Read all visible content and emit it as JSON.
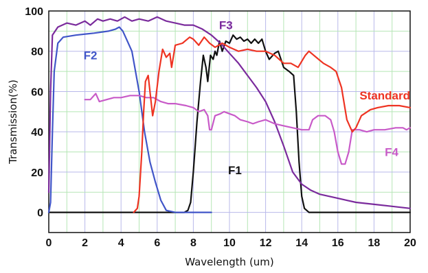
{
  "chart_data": {
    "type": "line",
    "xlabel": "Wavelength (um)",
    "ylabel": "Transmission(%)",
    "xlim": [
      0,
      20
    ],
    "ylim": [
      -10,
      100
    ],
    "xticks": [
      "0",
      "2",
      "4",
      "6",
      "8",
      "10",
      "12",
      "14",
      "16",
      "18",
      "20"
    ],
    "yticks": [
      "0",
      "20",
      "40",
      "60",
      "80",
      "100"
    ],
    "grid": true,
    "legend": "inline labels next to curves",
    "series": [
      {
        "name": "F1",
        "color": "#111111",
        "points": [
          [
            0,
            0
          ],
          [
            7.5,
            0
          ],
          [
            7.7,
            1
          ],
          [
            7.85,
            5
          ],
          [
            8.0,
            20
          ],
          [
            8.2,
            45
          ],
          [
            8.4,
            65
          ],
          [
            8.55,
            78
          ],
          [
            8.7,
            72
          ],
          [
            8.8,
            65
          ],
          [
            8.95,
            78
          ],
          [
            9.1,
            76
          ],
          [
            9.2,
            80
          ],
          [
            9.3,
            78
          ],
          [
            9.45,
            85
          ],
          [
            9.6,
            80
          ],
          [
            9.8,
            85
          ],
          [
            10.0,
            84
          ],
          [
            10.2,
            88
          ],
          [
            10.4,
            86
          ],
          [
            10.6,
            87
          ],
          [
            10.8,
            85
          ],
          [
            11.0,
            86
          ],
          [
            11.2,
            84
          ],
          [
            11.4,
            86
          ],
          [
            11.6,
            84
          ],
          [
            11.8,
            86
          ],
          [
            12.0,
            80
          ],
          [
            12.2,
            76
          ],
          [
            12.5,
            79
          ],
          [
            12.7,
            80
          ],
          [
            13.0,
            72
          ],
          [
            13.3,
            70
          ],
          [
            13.55,
            68
          ],
          [
            13.7,
            50
          ],
          [
            13.85,
            25
          ],
          [
            14.0,
            8
          ],
          [
            14.15,
            2
          ],
          [
            14.4,
            0
          ],
          [
            20,
            0
          ]
        ]
      },
      {
        "name": "F2",
        "color": "#4055c8",
        "points": [
          [
            0,
            0
          ],
          [
            0.1,
            5
          ],
          [
            0.2,
            40
          ],
          [
            0.3,
            70
          ],
          [
            0.5,
            84
          ],
          [
            0.8,
            87
          ],
          [
            1.5,
            88
          ],
          [
            2.5,
            89
          ],
          [
            3.3,
            90
          ],
          [
            3.7,
            91
          ],
          [
            3.9,
            92
          ],
          [
            4.1,
            90
          ],
          [
            4.3,
            86
          ],
          [
            4.6,
            80
          ],
          [
            5.0,
            60
          ],
          [
            5.3,
            40
          ],
          [
            5.6,
            25
          ],
          [
            5.9,
            15
          ],
          [
            6.2,
            6
          ],
          [
            6.5,
            1
          ],
          [
            7.0,
            0
          ],
          [
            9.0,
            0
          ]
        ]
      },
      {
        "name": "F3",
        "color": "#7a2a9c",
        "points": [
          [
            0,
            10
          ],
          [
            0.1,
            60
          ],
          [
            0.2,
            88
          ],
          [
            0.5,
            92
          ],
          [
            1.0,
            94
          ],
          [
            1.5,
            93
          ],
          [
            2.0,
            95
          ],
          [
            2.3,
            93
          ],
          [
            2.7,
            96
          ],
          [
            3.0,
            95
          ],
          [
            3.4,
            96
          ],
          [
            3.8,
            95
          ],
          [
            4.2,
            97
          ],
          [
            4.6,
            95
          ],
          [
            5.0,
            96
          ],
          [
            5.5,
            95
          ],
          [
            6.0,
            97
          ],
          [
            6.5,
            95
          ],
          [
            7.0,
            94
          ],
          [
            7.5,
            93
          ],
          [
            8.0,
            93
          ],
          [
            8.5,
            91
          ],
          [
            9.0,
            88
          ],
          [
            9.5,
            84
          ],
          [
            10.0,
            79
          ],
          [
            10.5,
            74
          ],
          [
            11.0,
            68
          ],
          [
            11.5,
            62
          ],
          [
            12.0,
            55
          ],
          [
            12.5,
            45
          ],
          [
            13.0,
            33
          ],
          [
            13.5,
            20
          ],
          [
            14.0,
            14
          ],
          [
            14.5,
            11
          ],
          [
            15.0,
            9
          ],
          [
            16.0,
            7
          ],
          [
            17.0,
            5
          ],
          [
            18.0,
            4
          ],
          [
            19.0,
            3
          ],
          [
            20.0,
            2
          ]
        ]
      },
      {
        "name": "F4",
        "color": "#c85ac8",
        "points": [
          [
            2.0,
            56
          ],
          [
            2.3,
            56
          ],
          [
            2.6,
            59
          ],
          [
            2.8,
            55
          ],
          [
            3.2,
            56
          ],
          [
            3.6,
            57
          ],
          [
            4.0,
            57
          ],
          [
            4.5,
            58
          ],
          [
            5.0,
            58
          ],
          [
            5.4,
            57
          ],
          [
            5.8,
            57
          ],
          [
            6.2,
            55
          ],
          [
            6.6,
            54
          ],
          [
            7.0,
            54
          ],
          [
            7.6,
            53
          ],
          [
            8.0,
            52
          ],
          [
            8.3,
            50
          ],
          [
            8.6,
            51
          ],
          [
            8.8,
            48
          ],
          [
            8.9,
            41
          ],
          [
            9.0,
            41
          ],
          [
            9.2,
            48
          ],
          [
            9.5,
            49
          ],
          [
            9.7,
            50
          ],
          [
            10.0,
            49
          ],
          [
            10.3,
            48
          ],
          [
            10.6,
            46
          ],
          [
            11.0,
            45
          ],
          [
            11.3,
            44
          ],
          [
            11.6,
            45
          ],
          [
            12.0,
            46
          ],
          [
            12.5,
            44
          ],
          [
            13.0,
            43
          ],
          [
            13.5,
            42
          ],
          [
            14.0,
            41
          ],
          [
            14.4,
            41
          ],
          [
            14.6,
            46
          ],
          [
            14.9,
            48
          ],
          [
            15.3,
            48
          ],
          [
            15.6,
            46
          ],
          [
            15.8,
            40
          ],
          [
            16.0,
            30
          ],
          [
            16.2,
            24
          ],
          [
            16.4,
            24
          ],
          [
            16.6,
            30
          ],
          [
            16.8,
            41
          ],
          [
            17.2,
            41
          ],
          [
            17.6,
            40
          ],
          [
            18.0,
            41
          ],
          [
            18.6,
            41
          ],
          [
            19.2,
            42
          ],
          [
            19.6,
            42
          ],
          [
            19.8,
            41
          ],
          [
            20.0,
            42
          ]
        ]
      },
      {
        "name": "Standard",
        "color": "#ee3322",
        "points": [
          [
            4.7,
            0
          ],
          [
            4.9,
            2
          ],
          [
            5.0,
            8
          ],
          [
            5.15,
            30
          ],
          [
            5.25,
            50
          ],
          [
            5.35,
            65
          ],
          [
            5.5,
            68
          ],
          [
            5.6,
            60
          ],
          [
            5.75,
            48
          ],
          [
            5.9,
            55
          ],
          [
            6.1,
            70
          ],
          [
            6.3,
            81
          ],
          [
            6.5,
            77
          ],
          [
            6.7,
            79
          ],
          [
            6.8,
            72
          ],
          [
            7.0,
            83
          ],
          [
            7.4,
            84
          ],
          [
            7.8,
            87
          ],
          [
            8.0,
            86
          ],
          [
            8.3,
            83
          ],
          [
            8.6,
            87
          ],
          [
            8.9,
            84
          ],
          [
            9.2,
            82
          ],
          [
            9.6,
            84
          ],
          [
            10.0,
            82
          ],
          [
            10.5,
            80
          ],
          [
            11.0,
            81
          ],
          [
            11.5,
            80
          ],
          [
            12.0,
            80
          ],
          [
            12.5,
            78
          ],
          [
            13.0,
            74
          ],
          [
            13.4,
            74
          ],
          [
            13.8,
            72
          ],
          [
            14.2,
            78
          ],
          [
            14.4,
            80
          ],
          [
            14.8,
            77
          ],
          [
            15.2,
            74
          ],
          [
            15.6,
            72
          ],
          [
            15.9,
            70
          ],
          [
            16.2,
            62
          ],
          [
            16.5,
            46
          ],
          [
            16.8,
            40
          ],
          [
            17.0,
            42
          ],
          [
            17.3,
            48
          ],
          [
            17.8,
            51
          ],
          [
            18.2,
            52
          ],
          [
            18.8,
            53
          ],
          [
            19.4,
            53
          ],
          [
            20.0,
            52
          ]
        ]
      }
    ]
  }
}
